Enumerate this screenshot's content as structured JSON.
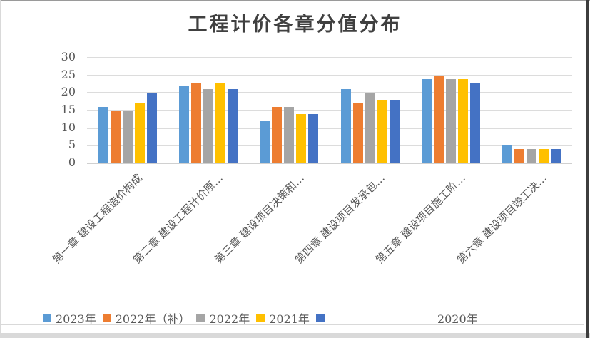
{
  "chart_data": {
    "type": "bar",
    "title": "工程计价各章分值分布",
    "categories": [
      "第一章 建设工程造价构成",
      "第二章 建设工程计价原…",
      "第三章 建设项目决策和…",
      "第四章 建设项目发承包…",
      "第五章 建设项目施工阶…",
      "第六章 建设项目竣工决…"
    ],
    "series": [
      {
        "name": "2023年",
        "color": "#5B9BD5",
        "values": [
          16,
          22,
          12,
          21,
          24,
          5
        ]
      },
      {
        "name": "2022年（补）",
        "color": "#ED7D31",
        "values": [
          15,
          23,
          16,
          17,
          25,
          4
        ]
      },
      {
        "name": "2022年",
        "color": "#A5A5A5",
        "values": [
          15,
          21,
          16,
          20,
          24,
          4
        ]
      },
      {
        "name": "2021年",
        "color": "#FFC000",
        "values": [
          17,
          23,
          14,
          18,
          24,
          4
        ]
      },
      {
        "name": "2020年",
        "color": "#4472C4",
        "values": [
          20,
          21,
          14,
          18,
          23,
          4
        ]
      }
    ],
    "yticks": [
      0,
      5,
      10,
      15,
      20,
      25,
      30
    ],
    "ylim": [
      0,
      30
    ],
    "grid": true,
    "legend_position": "bottom",
    "xlabel": "",
    "ylabel": ""
  },
  "colors": {
    "grid": "#dcdcdc",
    "axis_text": "#595959",
    "title_text": "#404040",
    "frame": "#d9d9d9"
  }
}
